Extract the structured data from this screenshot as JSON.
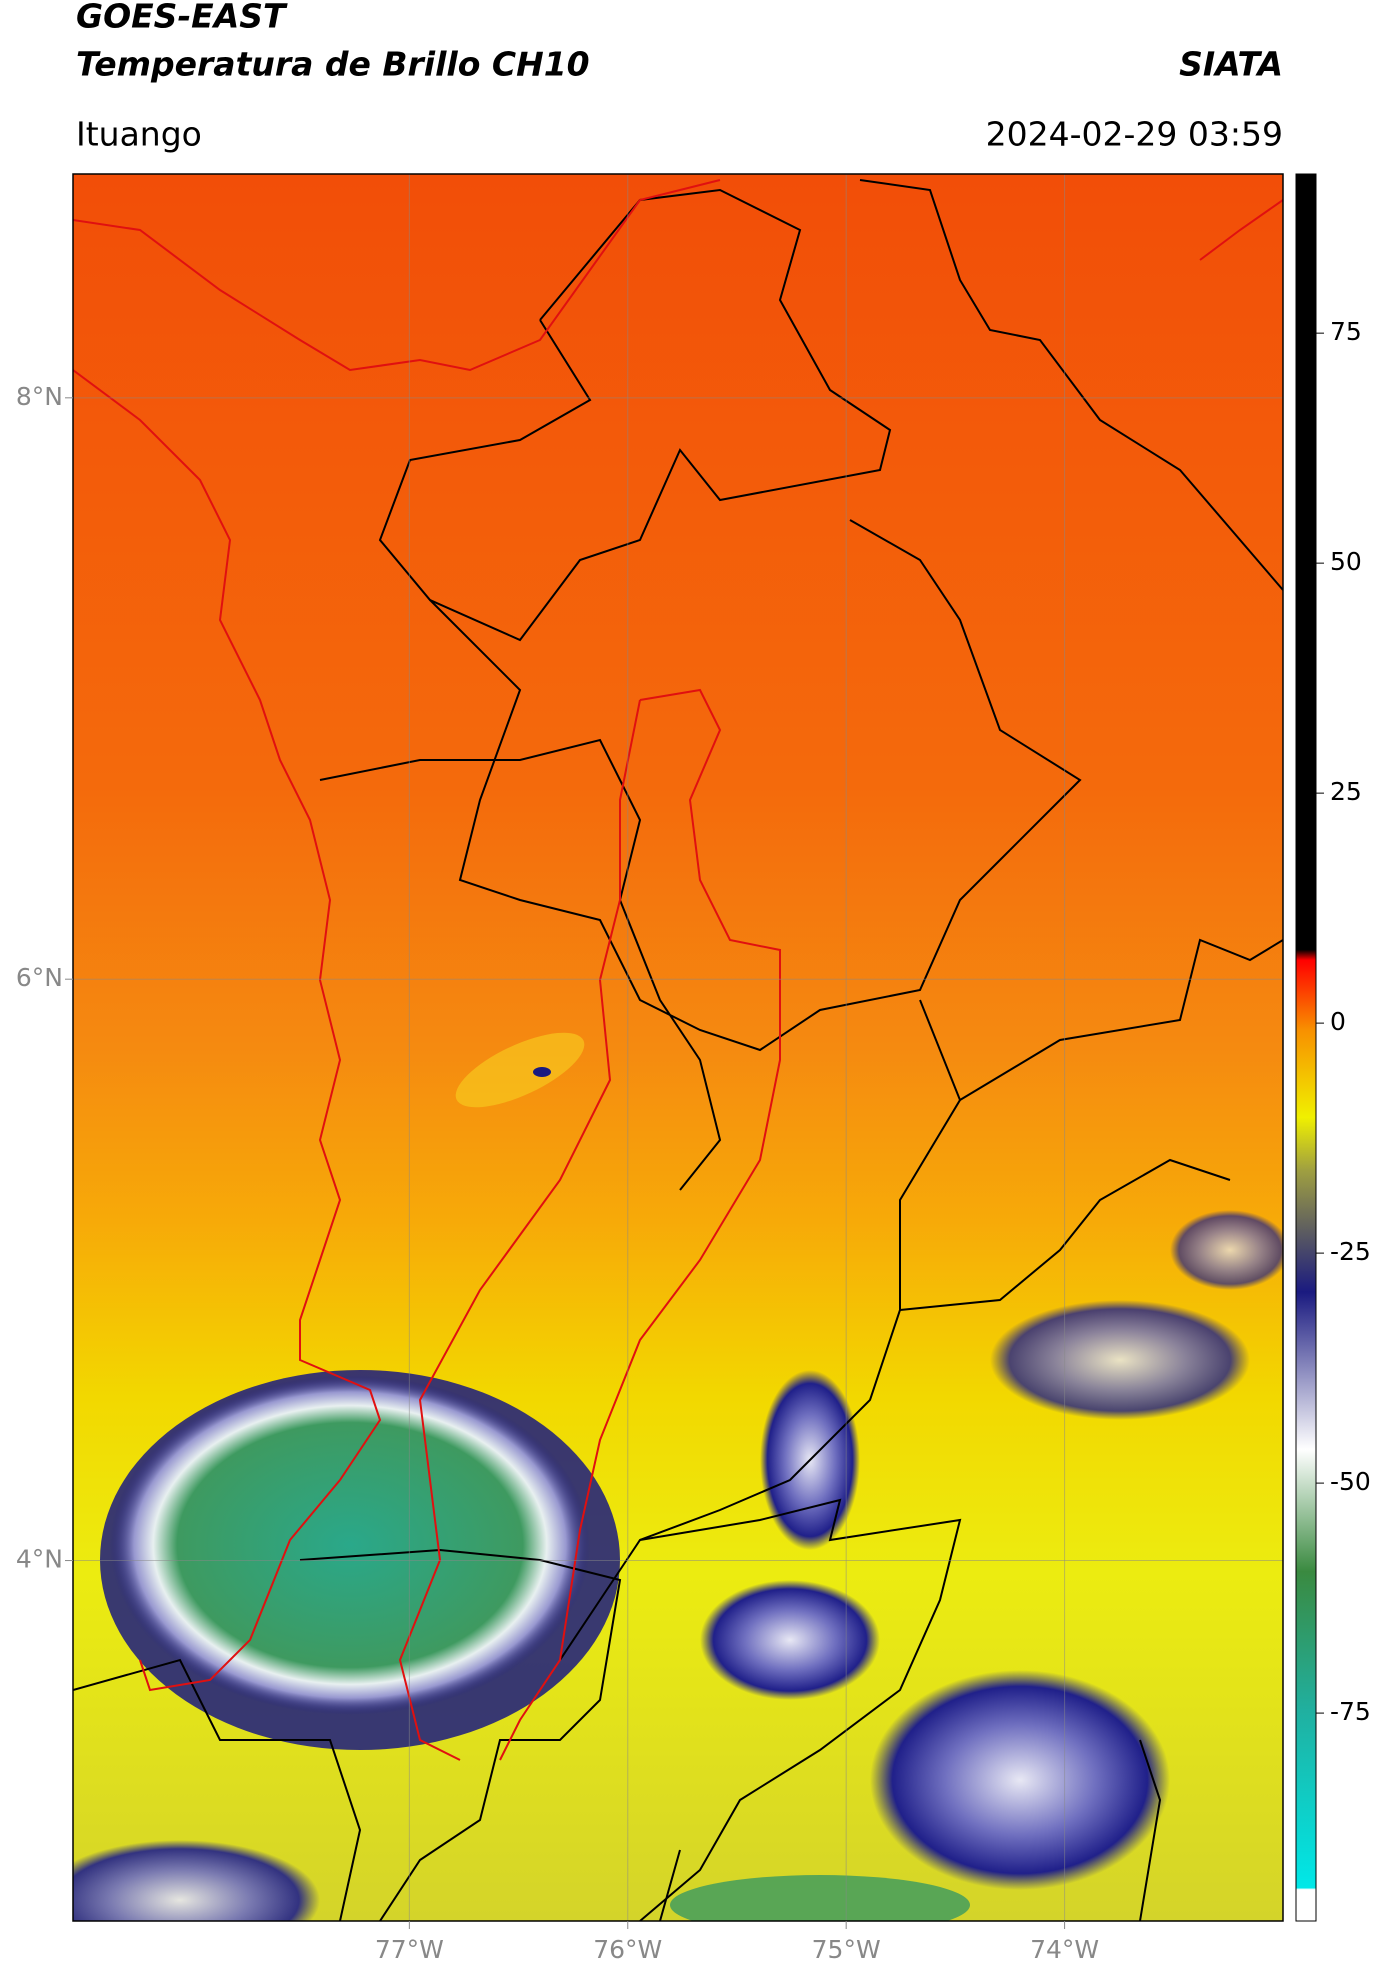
{
  "header": {
    "title": "GOES-EAST",
    "subtitle": "Temperatura de Brillo CH10",
    "brand": "SIATA",
    "location": "Ituango",
    "timestamp": "2024-02-29 03:59"
  },
  "map": {
    "xlim": [
      -78.54,
      -73.0
    ],
    "ylim": [
      2.76,
      8.77
    ],
    "xticks": [
      {
        "value": -77,
        "label": "77°W"
      },
      {
        "value": -76,
        "label": "76°W"
      },
      {
        "value": -75,
        "label": "75°W"
      },
      {
        "value": -74,
        "label": "74°W"
      }
    ],
    "yticks": [
      {
        "value": 8,
        "label": "8°N"
      },
      {
        "value": 6,
        "label": "6°N"
      },
      {
        "value": 4,
        "label": "4°N"
      }
    ],
    "grid": true
  },
  "colorbar": {
    "lim": [
      -97.6,
      92.3
    ],
    "ticks": [
      75,
      50,
      25,
      0,
      -25,
      -50,
      -75
    ]
  }
}
